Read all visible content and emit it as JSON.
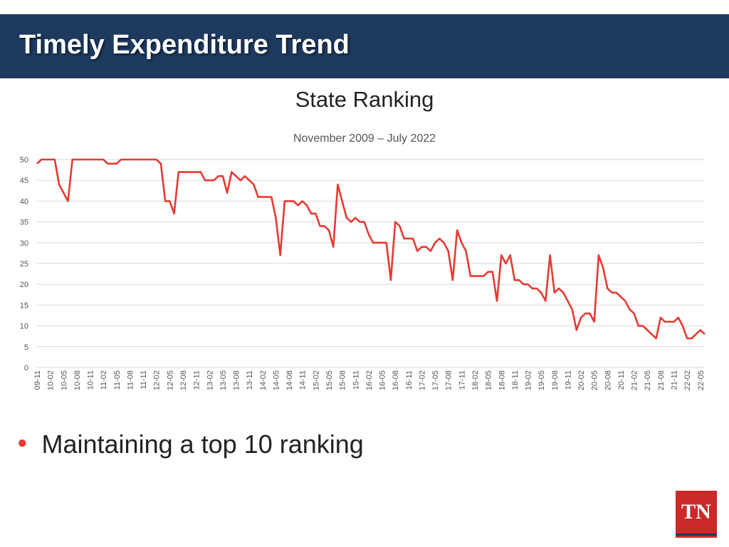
{
  "header": {
    "title": "Timely Expenditure Trend"
  },
  "bullet": {
    "text": "Maintaining a top 10 ranking"
  },
  "logo": {
    "text": "TN"
  },
  "colors": {
    "header_bg": "#1e3a5f",
    "line": "#e53a32",
    "bullet": "#e53a32"
  },
  "chart_data": {
    "type": "line",
    "title": "State Ranking",
    "subtitle": "November 2009 – July 2022",
    "xlabel": "",
    "ylabel": "",
    "ylim": [
      0,
      50
    ],
    "yticks": [
      0,
      5,
      10,
      15,
      20,
      25,
      30,
      35,
      40,
      45,
      50
    ],
    "grid": true,
    "legend": "none",
    "x_tick_labels": [
      "09-11",
      "10-02",
      "10-05",
      "10-08",
      "10-11",
      "11-02",
      "11-05",
      "11-08",
      "11-11",
      "12-02",
      "12-05",
      "12-08",
      "12-11",
      "13-02",
      "13-05",
      "13-08",
      "13-11",
      "14-02",
      "14-05",
      "14-08",
      "14-11",
      "15-02",
      "15-05",
      "15-08",
      "15-11",
      "16-02",
      "16-05",
      "16-08",
      "16-11",
      "17-02",
      "17-05",
      "17-08",
      "17-11",
      "18-02",
      "18-05",
      "18-08",
      "18-11",
      "19-02",
      "19-05",
      "19-08",
      "19-11",
      "20-02",
      "20-05",
      "20-08",
      "20-11",
      "21-02",
      "21-05",
      "21-08",
      "21-11",
      "22-02",
      "22-05"
    ],
    "series": [
      {
        "values": [
          49,
          50,
          50,
          50,
          50,
          44,
          42,
          40,
          50,
          50,
          50,
          50,
          50,
          50,
          50,
          50,
          49,
          49,
          49,
          50,
          50,
          50,
          50,
          50,
          50,
          50,
          50,
          50,
          49,
          40,
          40,
          37,
          47,
          47,
          47,
          47,
          47,
          47,
          45,
          45,
          45,
          46,
          46,
          42,
          47,
          46,
          45,
          46,
          45,
          44,
          41,
          41,
          41,
          41,
          36,
          27,
          40,
          40,
          40,
          39,
          40,
          39,
          37,
          37,
          34,
          34,
          33,
          29,
          44,
          40,
          36,
          35,
          36,
          35,
          35,
          32,
          30,
          30,
          30,
          30,
          21,
          35,
          34,
          31,
          31,
          31,
          28,
          29,
          29,
          28,
          30,
          31,
          30,
          28,
          21,
          33,
          30,
          28,
          22,
          22,
          22,
          22,
          23,
          23,
          16,
          27,
          25,
          27,
          21,
          21,
          20,
          20,
          19,
          19,
          18,
          16,
          27,
          18,
          19,
          18,
          16,
          14,
          9,
          12,
          13,
          13,
          11,
          27,
          24,
          19,
          18,
          18,
          17,
          16,
          14,
          13,
          10,
          10,
          9,
          8,
          7,
          12,
          11,
          11,
          11,
          12,
          10,
          7,
          7,
          8,
          9,
          8
        ]
      }
    ]
  }
}
